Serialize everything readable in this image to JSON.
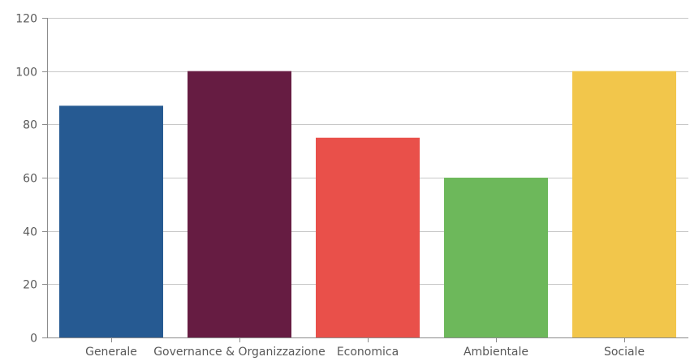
{
  "chart_data": {
    "type": "bar",
    "categories": [
      "Generale",
      "Governance & Organizzazione",
      "Economica",
      "Ambientale",
      "Sociale"
    ],
    "values": [
      87,
      100,
      75,
      60,
      100
    ],
    "colors": [
      "#265a92",
      "#661c42",
      "#e9504a",
      "#6db85b",
      "#f2c64b"
    ],
    "ylim": [
      0,
      120
    ],
    "yticks": [
      0,
      20,
      40,
      60,
      80,
      100,
      120
    ],
    "grid": true,
    "gridColor": "#c8c8c8",
    "axisColor": "#8c8c8c",
    "legend": "none"
  }
}
